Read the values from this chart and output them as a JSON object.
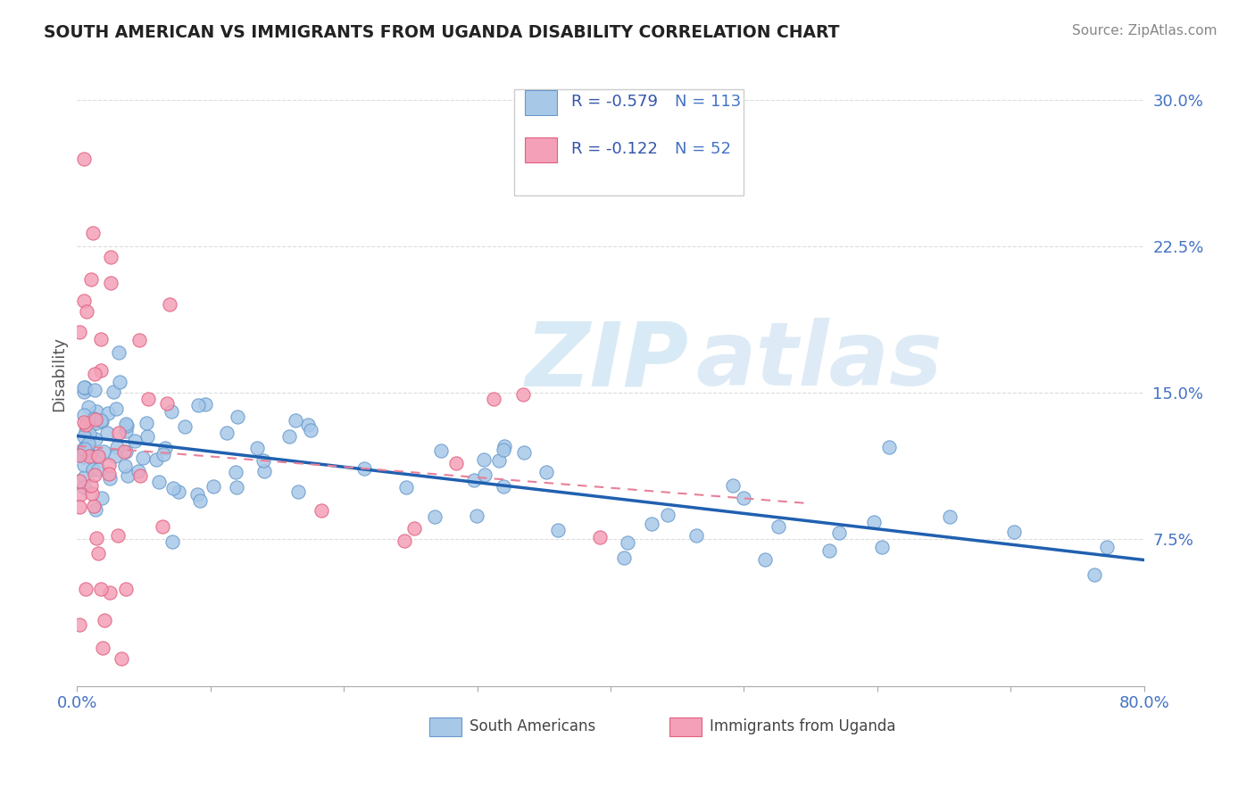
{
  "title": "SOUTH AMERICAN VS IMMIGRANTS FROM UGANDA DISABILITY CORRELATION CHART",
  "source": "Source: ZipAtlas.com",
  "ylabel": "Disability",
  "xlim": [
    0.0,
    0.8
  ],
  "ylim": [
    0.0,
    0.32
  ],
  "yticks": [
    0.0,
    0.075,
    0.15,
    0.225,
    0.3
  ],
  "ytick_labels": [
    "",
    "7.5%",
    "15.0%",
    "22.5%",
    "30.0%"
  ],
  "xticks": [
    0.0,
    0.1,
    0.2,
    0.3,
    0.4,
    0.5,
    0.6,
    0.7,
    0.8
  ],
  "R_blue": -0.579,
  "N_blue": 113,
  "R_pink": -0.122,
  "N_pink": 52,
  "blue_color": "#a8c8e8",
  "pink_color": "#f4a0b8",
  "blue_edge_color": "#6699cc",
  "pink_edge_color": "#e06080",
  "blue_line_color": "#2060b0",
  "pink_line_color": "#e88098",
  "watermark_color": "#d8eaf5",
  "legend_box_color": "#f8f8f8",
  "legend_border_color": "#cccccc",
  "title_color": "#222222",
  "source_color": "#888888",
  "ylabel_color": "#555555",
  "tick_color": "#4472c4",
  "grid_color": "#dddddd",
  "spine_color": "#aaaaaa"
}
